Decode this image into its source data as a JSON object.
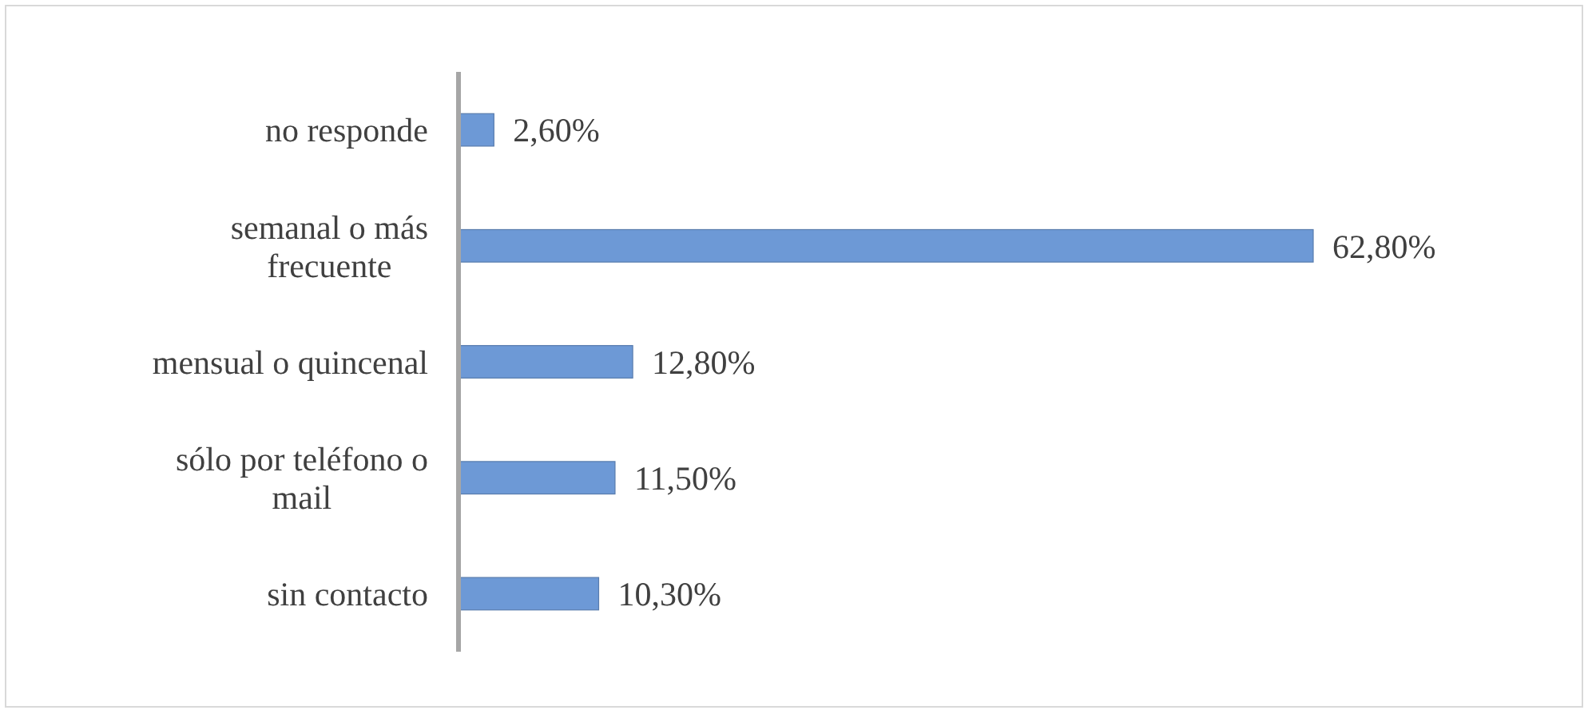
{
  "chart_data": {
    "type": "bar",
    "orientation": "horizontal",
    "categories": [
      "no responde",
      "semanal o más frecuente",
      "mensual o quincenal",
      "sólo por teléfono o mail",
      "sin contacto"
    ],
    "values": [
      2.6,
      62.8,
      12.8,
      11.5,
      10.3
    ],
    "value_labels": [
      "2,60%",
      "62,80%",
      "12,80%",
      "11,50%",
      "10,30%"
    ],
    "color": "#6d99d6"
  }
}
